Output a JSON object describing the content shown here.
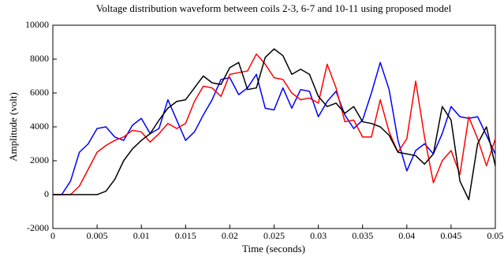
{
  "chart_data": {
    "type": "line",
    "title": "Voltage distribution waveform between coils 2-3, 6-7 and 10-11 using proposed model",
    "x_label": "Time (seconds)",
    "y_label": "Amplitude (volt)",
    "x": [
      0,
      0.001,
      0.002,
      0.003,
      0.004,
      0.005,
      0.006,
      0.007,
      0.008,
      0.009,
      0.01,
      0.011,
      0.012,
      0.013,
      0.014,
      0.015,
      0.016,
      0.017,
      0.018,
      0.019,
      0.02,
      0.021,
      0.022,
      0.023,
      0.024,
      0.025,
      0.026,
      0.027,
      0.028,
      0.029,
      0.03,
      0.031,
      0.032,
      0.033,
      0.034,
      0.035,
      0.036,
      0.037,
      0.038,
      0.039,
      0.04,
      0.041,
      0.042,
      0.043,
      0.044,
      0.045,
      0.046,
      0.047,
      0.048,
      0.049,
      0.05
    ],
    "series": [
      {
        "color": "#0000ff",
        "values": [
          0,
          0,
          800,
          2500,
          3000,
          3900,
          4000,
          3400,
          3200,
          4100,
          4500,
          3600,
          3900,
          5600,
          4400,
          3200,
          3700,
          4700,
          5600,
          6800,
          6900,
          5900,
          6300,
          7100,
          5100,
          5000,
          6300,
          5100,
          6200,
          6100,
          4600,
          5500,
          6100,
          4700,
          3900,
          4400,
          6000,
          7800,
          6200,
          3200,
          1400,
          2600,
          3000,
          2400,
          3600,
          5200,
          4600,
          4500,
          4600,
          3500,
          2400
        ]
      },
      {
        "color": "#ff0000",
        "values": [
          0,
          0,
          0,
          500,
          1500,
          2500,
          2900,
          3200,
          3400,
          3800,
          3700,
          3100,
          3600,
          4200,
          3900,
          4200,
          5500,
          6400,
          6300,
          5800,
          7100,
          7200,
          7300,
          8300,
          7700,
          6900,
          6800,
          6000,
          5600,
          5700,
          5400,
          7700,
          6300,
          4300,
          4400,
          3400,
          3400,
          5600,
          3700,
          2500,
          3300,
          6700,
          3400,
          700,
          2000,
          2600,
          1200,
          4600,
          3300,
          1700,
          3300
        ]
      },
      {
        "color": "#000000",
        "values": [
          0,
          0,
          0,
          0,
          0,
          0,
          200,
          900,
          2000,
          2700,
          3200,
          3600,
          4400,
          5100,
          5500,
          5600,
          6300,
          7000,
          6600,
          6500,
          7500,
          7800,
          6200,
          6300,
          8100,
          8600,
          8200,
          7100,
          7400,
          7100,
          5800,
          5200,
          5400,
          4800,
          5200,
          4300,
          4200,
          4000,
          3500,
          2500,
          2400,
          2300,
          1800,
          2400,
          5200,
          4400,
          800,
          -300,
          3000,
          4000,
          1700
        ]
      }
    ],
    "xlim": [
      0,
      0.05
    ],
    "xticks": [
      0,
      0.005,
      0.01,
      0.015,
      0.02,
      0.025,
      0.03,
      0.035,
      0.04,
      0.045,
      0.05
    ],
    "ylim": [
      -2000,
      10000
    ],
    "yticks": [
      -2000,
      0,
      2000,
      4000,
      6000,
      8000,
      10000
    ],
    "grid": false
  }
}
